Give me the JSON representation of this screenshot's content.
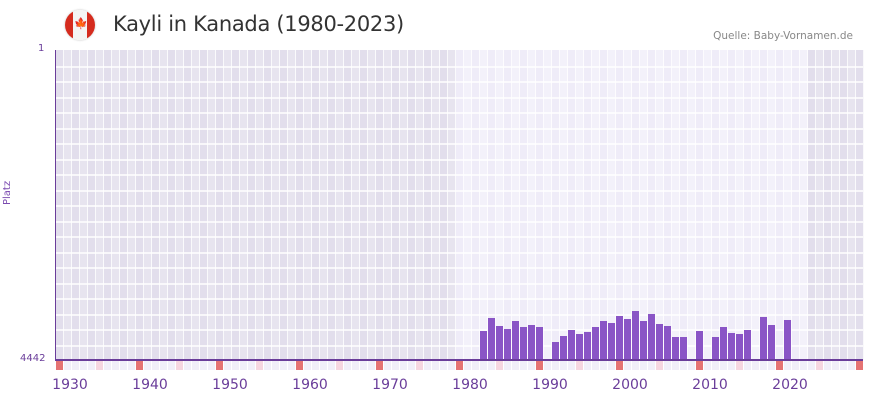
{
  "header": {
    "title": "Kayli in Kanada (1980-2023)",
    "source": "Quelle: Baby-Vornamen.de",
    "flag_icon": "canada-flag-icon",
    "flag_glyph": "🍁"
  },
  "colors": {
    "bar": "#8a55c6",
    "axis": "#6a3d9a",
    "decade_marker": "#e57373",
    "mid_marker": "#f6d6e0",
    "bg_dark": "#e4e0ee",
    "bg_light": "#f0edf8"
  },
  "chart_data": {
    "type": "bar",
    "title": "Kayli in Kanada (1980-2023)",
    "xlabel": "",
    "ylabel": "Platz",
    "ylim": [
      4442,
      1
    ],
    "y_reversed": true,
    "y_ticks": [
      "1",
      "4442"
    ],
    "x_ticks": [
      "1930",
      "1940",
      "1950",
      "1960",
      "1970",
      "1980",
      "1990",
      "2000",
      "2010",
      "2020"
    ],
    "x_range": [
      1928,
      2028
    ],
    "highlight_range": [
      1978,
      2021
    ],
    "grid": true,
    "legend": null,
    "x": [
      1981,
      1982,
      1983,
      1984,
      1985,
      1986,
      1987,
      1988,
      1990,
      1991,
      1992,
      1993,
      1994,
      1995,
      1996,
      1997,
      1998,
      1999,
      2000,
      2001,
      2002,
      2003,
      2004,
      2005,
      2006,
      2008,
      2010,
      2011,
      2012,
      2013,
      2014,
      2016,
      2017,
      2019
    ],
    "values": [
      4026,
      3840,
      3955,
      3998,
      3883,
      3969,
      3940,
      3969,
      4184,
      4098,
      4012,
      4069,
      4041,
      3969,
      3883,
      3912,
      3811,
      3854,
      3740,
      3883,
      3783,
      3926,
      3955,
      4112,
      4112,
      4026,
      4112,
      3969,
      4055,
      4069,
      4012,
      3826,
      3940,
      3869
    ]
  },
  "axis": {
    "y_top_label": "1",
    "y_bottom_label": "4442",
    "y_title": "Platz",
    "x_labels": [
      "1930",
      "1940",
      "1950",
      "1960",
      "1970",
      "1980",
      "1990",
      "2000",
      "2010",
      "2020"
    ]
  }
}
